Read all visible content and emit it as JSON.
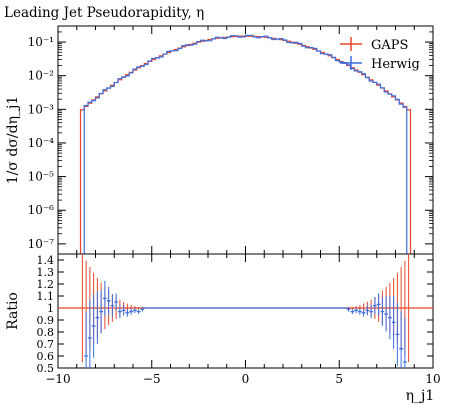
{
  "chart_data": {
    "type": "line",
    "title": "Leading Jet Pseudorapidity, η",
    "xlabel": "η_j1",
    "top_panel": {
      "ylabel": "1/σ dσ/dη_j1",
      "yscale": "log",
      "ylim": [
        5e-08,
        0.3
      ],
      "yticks": [
        {
          "value": 1e-07,
          "label": "10⁻⁷"
        },
        {
          "value": 1e-06,
          "label": "10⁻⁶"
        },
        {
          "value": 1e-05,
          "label": "10⁻⁵"
        },
        {
          "value": 0.0001,
          "label": "10⁻⁴"
        },
        {
          "value": 0.001,
          "label": "10⁻³"
        },
        {
          "value": 0.01,
          "label": "10⁻²"
        },
        {
          "value": 0.1,
          "label": "10⁻¹"
        }
      ],
      "gaussian_model": {
        "peak": 0.15,
        "sigma": 2.74,
        "mean": 0
      },
      "bin_width": 0.2,
      "gaps_range": [
        -8.8,
        8.8
      ],
      "herwig_range": [
        -8.6,
        8.6
      ],
      "edge_points": [
        {
          "x": -8.75,
          "gaps": 5e-05,
          "herwig": 3e-06
        },
        {
          "x": -8.55,
          "gaps": 5e-05,
          "herwig": 1e-07
        },
        {
          "x": 8.55,
          "gaps": 5e-05,
          "herwig": 1e-07
        },
        {
          "x": 8.75,
          "gaps": 5e-05,
          "herwig": 3e-06
        }
      ]
    },
    "ratio_panel": {
      "ylabel": "Ratio",
      "ylim": [
        0.5,
        1.45
      ],
      "yticks": [
        0.5,
        0.6,
        0.7,
        0.8,
        0.9,
        1,
        1.1,
        1.2,
        1.3,
        1.4
      ],
      "ytick_labels": [
        "0.5",
        "0.6",
        "0.7",
        "0.8",
        "0.9",
        "1",
        "1.1",
        "1.2",
        "1.3",
        "1.4"
      ],
      "gaps_ratio": 1.0,
      "gaps_error_model": "grows toward |η| = 8.7, reaching about ±0.45",
      "herwig_ratio_points": [
        {
          "x": -8.5,
          "y": 0.6
        },
        {
          "x": -8.3,
          "y": 0.75
        },
        {
          "x": -8.1,
          "y": 0.85
        },
        {
          "x": -7.9,
          "y": 0.92
        },
        {
          "x": -7.7,
          "y": 0.97
        },
        {
          "x": -7.5,
          "y": 1.08
        },
        {
          "x": -7.3,
          "y": 1.06
        },
        {
          "x": -7.1,
          "y": 1.02
        },
        {
          "x": -6.9,
          "y": 1.05
        },
        {
          "x": -6.7,
          "y": 0.97
        },
        {
          "x": -6.5,
          "y": 0.98
        },
        {
          "x": -6.3,
          "y": 0.96
        },
        {
          "x": -6.1,
          "y": 0.97
        },
        {
          "x": -5.9,
          "y": 0.98
        },
        {
          "x": -5.7,
          "y": 0.97
        },
        {
          "x": -5.5,
          "y": 0.99
        },
        {
          "x": 5.5,
          "y": 0.99
        },
        {
          "x": 5.7,
          "y": 0.97
        },
        {
          "x": 5.9,
          "y": 0.98
        },
        {
          "x": 6.1,
          "y": 0.97
        },
        {
          "x": 6.3,
          "y": 0.96
        },
        {
          "x": 6.5,
          "y": 0.98
        },
        {
          "x": 6.7,
          "y": 0.97
        },
        {
          "x": 6.9,
          "y": 1.02
        },
        {
          "x": 7.1,
          "y": 1.03
        },
        {
          "x": 7.3,
          "y": 0.97
        },
        {
          "x": 7.5,
          "y": 0.95
        },
        {
          "x": 7.7,
          "y": 0.92
        },
        {
          "x": 7.9,
          "y": 0.88
        },
        {
          "x": 8.1,
          "y": 0.78
        },
        {
          "x": 8.3,
          "y": 0.66
        },
        {
          "x": 8.5,
          "y": 0.55
        }
      ]
    },
    "xlim": [
      -10,
      10
    ],
    "xticks": [
      -10,
      -5,
      0,
      5,
      10
    ],
    "xtick_labels": [
      "−10",
      "−5",
      "0",
      "5",
      "10"
    ],
    "series": [
      {
        "name": "GAPS",
        "color": "#e8462a"
      },
      {
        "name": "Herwig",
        "color": "#3b6fe0"
      }
    ],
    "legend_position": "top-right"
  }
}
